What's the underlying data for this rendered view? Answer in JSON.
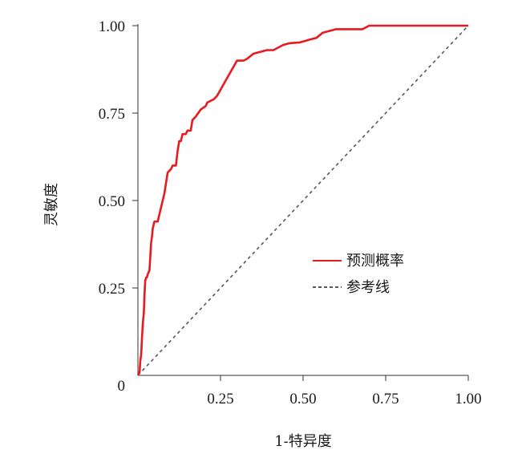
{
  "chart_data": {
    "type": "line",
    "xlabel": "1-特异度",
    "ylabel": "灵敏度",
    "xlim": [
      0,
      1
    ],
    "ylim": [
      0,
      1
    ],
    "x_ticks": [
      "0.25",
      "0.50",
      "0.75",
      "1.00"
    ],
    "y_ticks": [
      "0",
      "0.25",
      "0.50",
      "0.75",
      "1.00"
    ],
    "grid": false,
    "legend_position": "center-right",
    "series": [
      {
        "name": "预测概率",
        "color": "#e8191f",
        "style": "solid",
        "x": [
          0,
          0.005,
          0.007,
          0.01,
          0.012,
          0.015,
          0.018,
          0.02,
          0.022,
          0.025,
          0.027,
          0.03,
          0.035,
          0.04,
          0.043,
          0.045,
          0.05,
          0.055,
          0.06,
          0.075,
          0.08,
          0.09,
          0.1,
          0.105,
          0.115,
          0.12,
          0.125,
          0.13,
          0.135,
          0.145,
          0.15,
          0.16,
          0.165,
          0.175,
          0.19,
          0.205,
          0.21,
          0.23,
          0.24,
          0.27,
          0.3,
          0.32,
          0.33,
          0.35,
          0.37,
          0.39,
          0.41,
          0.44,
          0.46,
          0.49,
          0.52,
          0.54,
          0.56,
          0.6,
          0.68,
          0.7,
          0.8,
          1.0
        ],
        "y": [
          0,
          0.01,
          0.04,
          0.06,
          0.1,
          0.15,
          0.18,
          0.23,
          0.27,
          0.28,
          0.28,
          0.29,
          0.3,
          0.38,
          0.4,
          0.42,
          0.44,
          0.44,
          0.44,
          0.5,
          0.52,
          0.58,
          0.59,
          0.6,
          0.6,
          0.64,
          0.67,
          0.67,
          0.69,
          0.69,
          0.7,
          0.7,
          0.73,
          0.74,
          0.76,
          0.77,
          0.78,
          0.79,
          0.8,
          0.85,
          0.9,
          0.9,
          0.905,
          0.92,
          0.925,
          0.93,
          0.93,
          0.945,
          0.95,
          0.952,
          0.96,
          0.965,
          0.98,
          0.99,
          0.99,
          1.0,
          1.0,
          1.0
        ]
      },
      {
        "name": "参考线",
        "color": "#505a60",
        "style": "dashed",
        "x": [
          0,
          1
        ],
        "y": [
          0,
          1
        ]
      }
    ]
  }
}
